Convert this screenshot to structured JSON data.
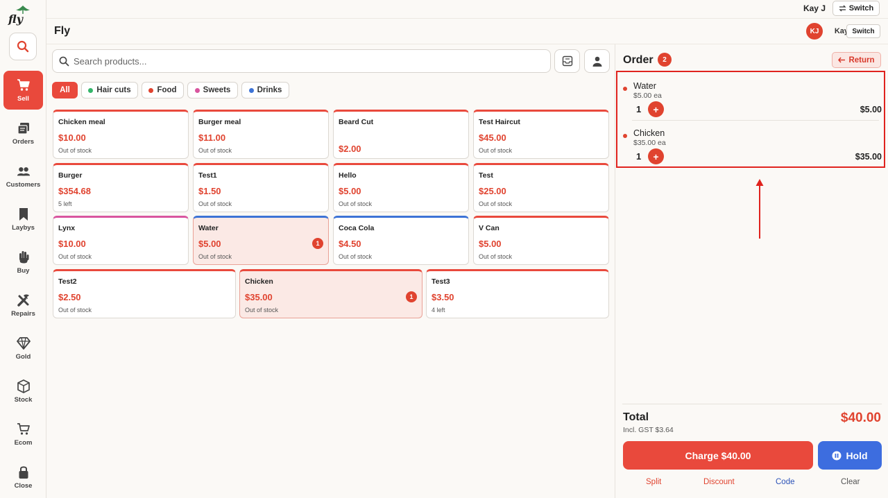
{
  "sidebar": {
    "logo_text": "fly",
    "items": [
      {
        "label": "Sell",
        "icon": "cart-icon",
        "active": true
      },
      {
        "label": "Orders",
        "icon": "orders-icon",
        "active": false
      },
      {
        "label": "Customers",
        "icon": "customers-icon",
        "active": false
      },
      {
        "label": "Laybys",
        "icon": "bookmark-icon",
        "active": false
      },
      {
        "label": "Buy",
        "icon": "hand-icon",
        "active": false
      },
      {
        "label": "Repairs",
        "icon": "tools-icon",
        "active": false
      },
      {
        "label": "Gold",
        "icon": "diamond-icon",
        "active": false
      },
      {
        "label": "Stock",
        "icon": "box-icon",
        "active": false
      },
      {
        "label": "Ecom",
        "icon": "shopping-cart-icon",
        "active": false
      },
      {
        "label": "Close",
        "icon": "lock-icon",
        "active": false
      }
    ]
  },
  "topbar": {
    "user": "Kay J",
    "switch_label": "Switch"
  },
  "header": {
    "title": "Fly",
    "avatar_initials": "KJ",
    "user": "Kay",
    "switch_label": "Switch"
  },
  "search": {
    "placeholder": "Search products..."
  },
  "categories": [
    {
      "label": "All",
      "active": true,
      "color": ""
    },
    {
      "label": "Hair cuts",
      "active": false,
      "color": "#34b56a"
    },
    {
      "label": "Food",
      "active": false,
      "color": "#e0432f"
    },
    {
      "label": "Sweets",
      "active": false,
      "color": "#d9559f"
    },
    {
      "label": "Drinks",
      "active": false,
      "color": "#3d73d6"
    }
  ],
  "products": [
    {
      "name": "Chicken meal",
      "price": "$10.00",
      "stock": "Out of stock"
    },
    {
      "name": "Burger meal",
      "price": "$11.00",
      "stock": "Out of stock"
    },
    {
      "name": "Beard Cut",
      "price": "$2.00",
      "stock": ""
    },
    {
      "name": "Test Haircut",
      "price": "$45.00",
      "stock": "Out of stock"
    },
    {
      "name": "Burger",
      "price": "$354.68",
      "stock": "5 left"
    },
    {
      "name": "Test1",
      "price": "$1.50",
      "stock": "Out of stock"
    },
    {
      "name": "Hello",
      "price": "$5.00",
      "stock": "Out of stock"
    },
    {
      "name": "Test",
      "price": "$25.00",
      "stock": "Out of stock"
    },
    {
      "name": "Lynx",
      "price": "$10.00",
      "stock": "Out of stock"
    },
    {
      "name": "Water",
      "price": "$5.00",
      "stock": "Out of stock",
      "badge": "1"
    },
    {
      "name": "Coca Cola",
      "price": "$4.50",
      "stock": "Out of stock"
    },
    {
      "name": "V Can",
      "price": "$5.00",
      "stock": "Out of stock"
    },
    {
      "name": "Test2",
      "price": "$2.50",
      "stock": "Out of stock"
    },
    {
      "name": "Chicken",
      "price": "$35.00",
      "stock": "Out of stock",
      "badge": "1"
    },
    {
      "name": "Test3",
      "price": "$3.50",
      "stock": "4 left"
    }
  ],
  "order": {
    "title": "Order",
    "count": "2",
    "return_label": "Return",
    "lines": [
      {
        "name": "Water",
        "each": "$5.00 ea",
        "qty": "1",
        "total": "$5.00"
      },
      {
        "name": "Chicken",
        "each": "$35.00 ea",
        "qty": "1",
        "total": "$35.00"
      }
    ],
    "total_label": "Total",
    "gst": "Incl. GST $3.64",
    "total": "$40.00",
    "charge_label": "Charge $40.00",
    "hold_label": "Hold",
    "links": {
      "split": "Split",
      "discount": "Discount",
      "code": "Code",
      "clear": "Clear"
    }
  },
  "colors": {
    "accent": "#e9493c",
    "hold": "#3d6ddf",
    "link_blue": "#2b52b8"
  }
}
